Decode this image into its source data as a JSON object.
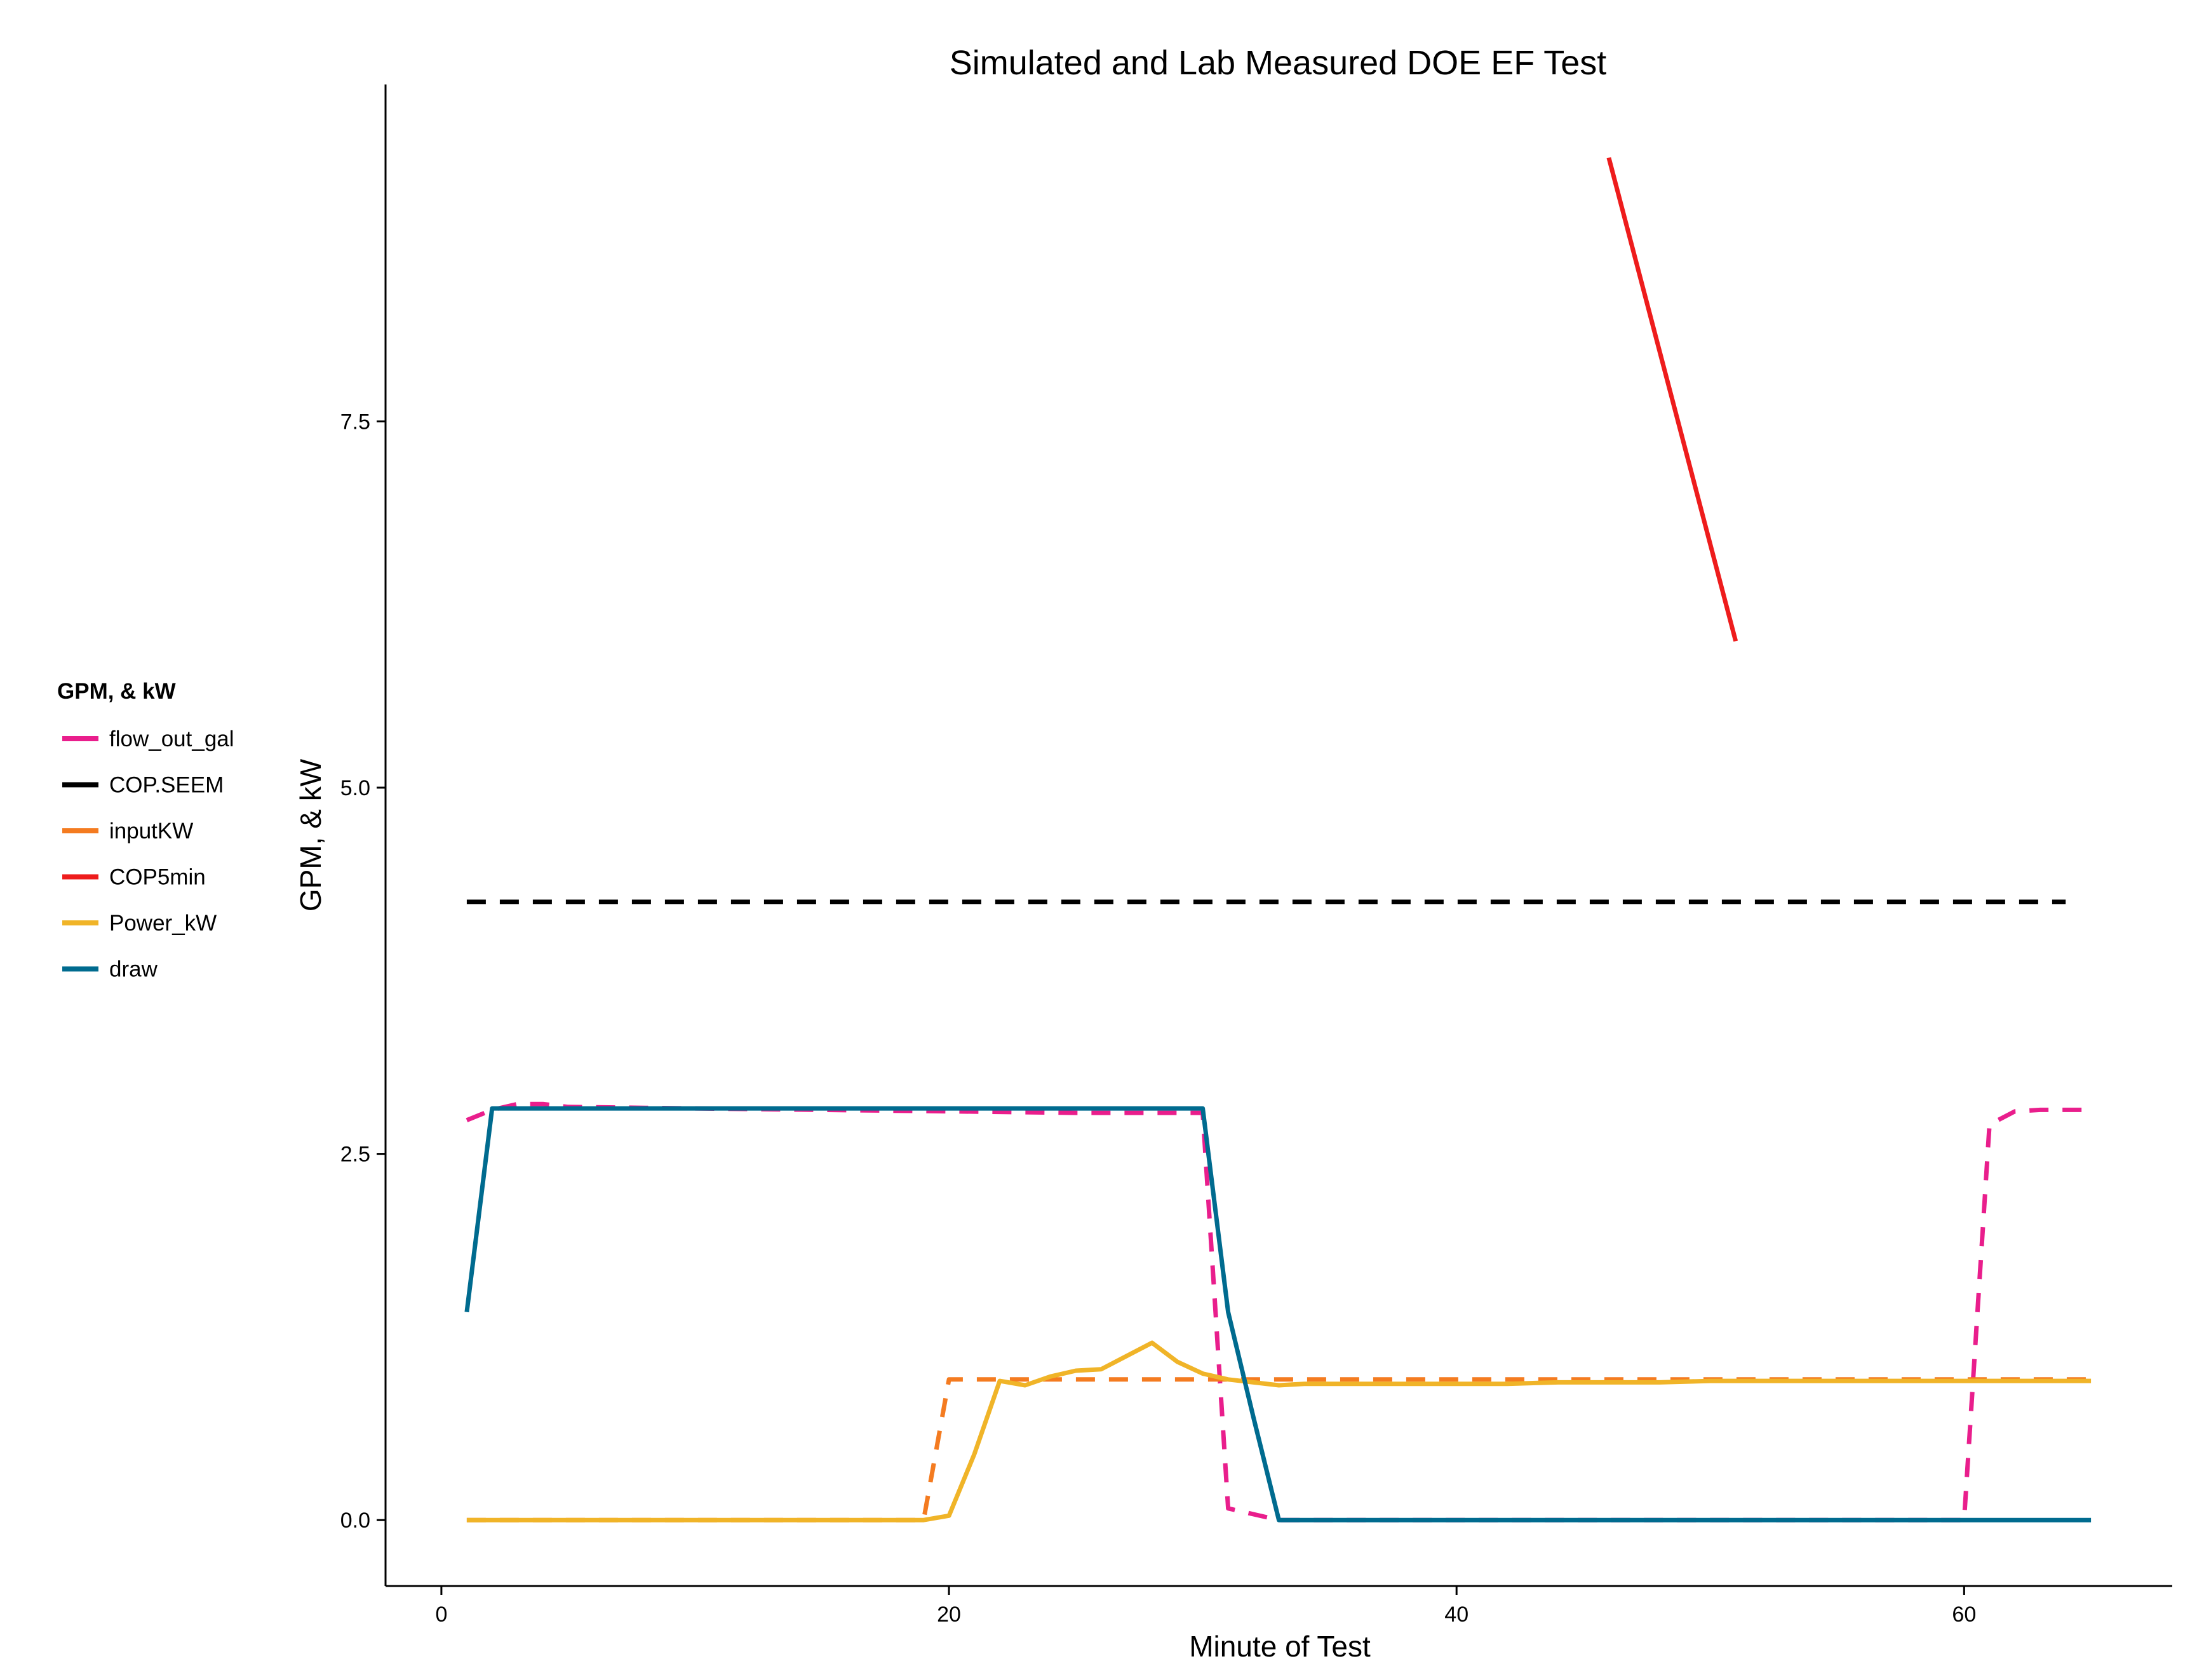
{
  "chart_data": {
    "type": "line",
    "title": "Simulated and Lab Measured DOE EF Test",
    "xlabel": "Minute of Test",
    "ylabel": "GPM, & kW",
    "xlim": [
      -2.2,
      68.2
    ],
    "ylim": [
      -0.45,
      9.8
    ],
    "x_ticks": [
      0,
      20,
      40,
      60
    ],
    "x_tick_labels": [
      "0",
      "20",
      "40",
      "60"
    ],
    "y_ticks": [
      0,
      2.5,
      5,
      7.5
    ],
    "y_tick_labels": [
      "0.0",
      "2.5",
      "5.0",
      "7.5"
    ],
    "grid": false,
    "legend": {
      "title": "GPM, & kW",
      "position": "left",
      "entries": [
        "flow_out_gal",
        "COP.SEEM",
        "inputKW",
        "COP5min",
        "Power_kW",
        "draw"
      ]
    },
    "series": [
      {
        "name": "flow_out_gal",
        "color": "#e91e8c",
        "dash": "dashed",
        "x": [
          1,
          2,
          3,
          4,
          5,
          10,
          15,
          20,
          25,
          30,
          31,
          32,
          33,
          34,
          40,
          45,
          50,
          55,
          59,
          60,
          61,
          62,
          63,
          64,
          65
        ],
        "y": [
          2.73,
          2.8,
          2.84,
          2.84,
          2.82,
          2.81,
          2.8,
          2.79,
          2.78,
          2.78,
          0.08,
          0.04,
          0.0,
          0.0,
          0.0,
          0.0,
          0.0,
          0.0,
          0.0,
          0.0,
          2.7,
          2.79,
          2.8,
          2.8,
          2.8
        ]
      },
      {
        "name": "COP.SEEM",
        "color": "#000000",
        "dash": "dashed",
        "x": [
          1,
          64
        ],
        "y": [
          4.22,
          4.22
        ]
      },
      {
        "name": "inputKW",
        "color": "#f47b20",
        "dash": "dashed",
        "x": [
          1,
          5,
          10,
          15,
          19,
          20,
          21,
          25,
          30,
          35,
          40,
          45,
          50,
          55,
          60,
          65
        ],
        "y": [
          0,
          0,
          0,
          0,
          0,
          0.96,
          0.96,
          0.96,
          0.96,
          0.96,
          0.96,
          0.96,
          0.96,
          0.96,
          0.96,
          0.96
        ]
      },
      {
        "name": "COP5min",
        "color": "#ee1c1c",
        "dash": "solid",
        "x": [
          46,
          51
        ],
        "y": [
          9.3,
          6.0
        ]
      },
      {
        "name": "Power_kW",
        "color": "#f0b428",
        "dash": "solid",
        "x": [
          1,
          5,
          10,
          15,
          19,
          20,
          21,
          22,
          23,
          24,
          25,
          26,
          27,
          28,
          29,
          30,
          31,
          32,
          33,
          34,
          35,
          36,
          38,
          40,
          42,
          44,
          46,
          48,
          50,
          55,
          60,
          65
        ],
        "y": [
          0,
          0,
          0,
          0,
          0,
          0.03,
          0.45,
          0.95,
          0.92,
          0.98,
          1.02,
          1.03,
          1.12,
          1.21,
          1.08,
          1.0,
          0.96,
          0.94,
          0.92,
          0.93,
          0.93,
          0.93,
          0.93,
          0.93,
          0.93,
          0.94,
          0.94,
          0.94,
          0.95,
          0.95,
          0.95,
          0.95
        ]
      },
      {
        "name": "draw",
        "color": "#006b8f",
        "dash": "solid",
        "x": [
          1,
          2,
          3,
          10,
          20,
          30,
          31,
          32,
          33,
          34,
          40,
          50,
          60,
          65
        ],
        "y": [
          1.42,
          2.81,
          2.81,
          2.81,
          2.81,
          2.81,
          1.42,
          0.7,
          0.0,
          0.0,
          0.0,
          0.0,
          0.0,
          0.0
        ]
      }
    ]
  }
}
